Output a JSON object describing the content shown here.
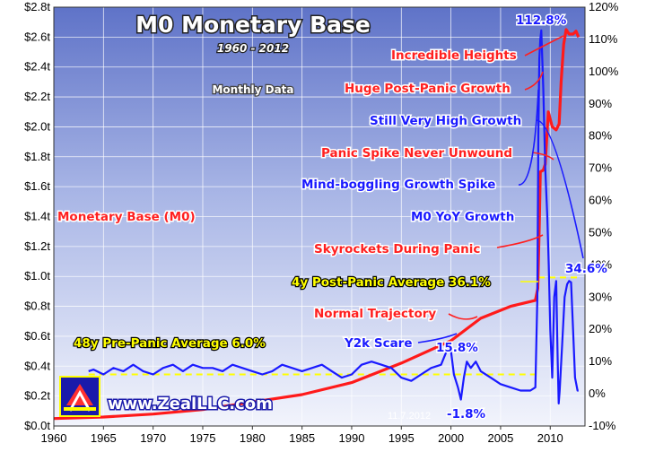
{
  "chart_data": {
    "type": "line",
    "title": "M0 Monetary Base",
    "subtitle": "1960 - 2012",
    "note": "Monthly Data",
    "watermark": "www.ZealLLC.com",
    "date_stamp": "11.7.2012",
    "x_ticks": [
      "1960",
      "1965",
      "1970",
      "1975",
      "1980",
      "1985",
      "1990",
      "1995",
      "2000",
      "2005",
      "2010"
    ],
    "xlim": [
      1960,
      2013.5
    ],
    "y_left": {
      "ticks": [
        "$0.0t",
        "$0.2t",
        "$0.4t",
        "$0.6t",
        "$0.8t",
        "$1.0t",
        "$1.2t",
        "$1.4t",
        "$1.6t",
        "$1.8t",
        "$2.0t",
        "$2.2t",
        "$2.4t",
        "$2.6t",
        "$2.8t"
      ],
      "lim": [
        0,
        2.8
      ]
    },
    "y_right": {
      "ticks": [
        "-10%",
        "0%",
        "10%",
        "20%",
        "30%",
        "40%",
        "50%",
        "60%",
        "70%",
        "80%",
        "90%",
        "100%",
        "110%",
        "120%"
      ],
      "lim": [
        -10,
        120
      ]
    },
    "grid": true,
    "series": [
      {
        "name": "Monetary Base (M0)",
        "axis": "left",
        "color": "#ff1a1a",
        "points": [
          [
            1960,
            0.05
          ],
          [
            1965,
            0.06
          ],
          [
            1970,
            0.08
          ],
          [
            1975,
            0.11
          ],
          [
            1980,
            0.16
          ],
          [
            1985,
            0.21
          ],
          [
            1990,
            0.29
          ],
          [
            1995,
            0.42
          ],
          [
            2000,
            0.57
          ],
          [
            2003,
            0.72
          ],
          [
            2006,
            0.8
          ],
          [
            2008.5,
            0.84
          ],
          [
            2008.75,
            0.92
          ],
          [
            2008.9,
            1.35
          ],
          [
            2009.0,
            1.7
          ],
          [
            2009.3,
            1.71
          ],
          [
            2009.5,
            1.75
          ],
          [
            2009.8,
            2.1
          ],
          [
            2010.2,
            2.0
          ],
          [
            2010.6,
            1.98
          ],
          [
            2010.9,
            2.02
          ],
          [
            2011.1,
            2.3
          ],
          [
            2011.35,
            2.55
          ],
          [
            2011.6,
            2.65
          ],
          [
            2011.9,
            2.62
          ],
          [
            2012.3,
            2.62
          ],
          [
            2012.6,
            2.64
          ],
          [
            2012.85,
            2.6
          ]
        ]
      },
      {
        "name": "M0 YoY Growth",
        "axis": "right",
        "color": "#1a1aff",
        "points": [
          [
            1963.5,
            7
          ],
          [
            1964,
            7.5
          ],
          [
            1965,
            6
          ],
          [
            1966,
            8
          ],
          [
            1967,
            7
          ],
          [
            1968,
            9
          ],
          [
            1969,
            7
          ],
          [
            1970,
            6
          ],
          [
            1971,
            8
          ],
          [
            1972,
            9
          ],
          [
            1973,
            7
          ],
          [
            1974,
            9
          ],
          [
            1975,
            8
          ],
          [
            1976,
            8
          ],
          [
            1977,
            7
          ],
          [
            1978,
            9
          ],
          [
            1979,
            8
          ],
          [
            1980,
            7
          ],
          [
            1981,
            6
          ],
          [
            1982,
            7
          ],
          [
            1983,
            9
          ],
          [
            1984,
            8
          ],
          [
            1985,
            7
          ],
          [
            1986,
            8
          ],
          [
            1987,
            9
          ],
          [
            1988,
            7
          ],
          [
            1989,
            5
          ],
          [
            1990,
            6
          ],
          [
            1991,
            9
          ],
          [
            1992,
            10
          ],
          [
            1993,
            9
          ],
          [
            1994,
            8
          ],
          [
            1995,
            5
          ],
          [
            1996,
            4
          ],
          [
            1997,
            6
          ],
          [
            1998,
            8
          ],
          [
            1999,
            9
          ],
          [
            1999.9,
            15.8
          ],
          [
            2000.3,
            6
          ],
          [
            2000.7,
            2
          ],
          [
            2001,
            -1.8
          ],
          [
            2001.3,
            5
          ],
          [
            2001.6,
            10
          ],
          [
            2002,
            8
          ],
          [
            2002.5,
            10
          ],
          [
            2003,
            7
          ],
          [
            2004,
            5
          ],
          [
            2005,
            3
          ],
          [
            2006,
            2
          ],
          [
            2007,
            1
          ],
          [
            2008,
            1
          ],
          [
            2008.5,
            2
          ],
          [
            2008.7,
            30
          ],
          [
            2008.8,
            80
          ],
          [
            2008.9,
            104
          ],
          [
            2009.0,
            110
          ],
          [
            2009.1,
            112.8
          ],
          [
            2009.3,
            95
          ],
          [
            2009.5,
            70
          ],
          [
            2009.7,
            55
          ],
          [
            2009.85,
            40
          ],
          [
            2010,
            20
          ],
          [
            2010.2,
            5
          ],
          [
            2010.4,
            30
          ],
          [
            2010.6,
            35
          ],
          [
            2010.75,
            10
          ],
          [
            2010.85,
            -3
          ],
          [
            2010.95,
            1
          ],
          [
            2011.2,
            15
          ],
          [
            2011.45,
            30
          ],
          [
            2011.7,
            34
          ],
          [
            2011.9,
            35
          ],
          [
            2012.1,
            34.6
          ],
          [
            2012.3,
            20
          ],
          [
            2012.5,
            5
          ],
          [
            2012.75,
            1
          ],
          [
            2012.85,
            1
          ]
        ]
      }
    ],
    "annotations": [
      {
        "text": "48y Pre-Panic Average 6.0%",
        "color": "#ffff00",
        "value": 6.0,
        "axis": "right",
        "x": [
          1963.5,
          2008.5
        ]
      },
      {
        "text": "4y Post-Panic Average 36.1%",
        "color": "#ffff00",
        "value": 36.1,
        "axis": "right",
        "x": [
          2008.8,
          2012.85
        ]
      },
      {
        "text": "Monetary Base (M0)",
        "color": "#ff2020"
      },
      {
        "text": "M0 YoY Growth",
        "color": "#1a1aff"
      },
      {
        "text": "Incredible Heights",
        "color": "#ff2020"
      },
      {
        "text": "Huge Post-Panic Growth",
        "color": "#ff2020"
      },
      {
        "text": "Still Very High Growth",
        "color": "#1a1aff"
      },
      {
        "text": "Panic Spike Never Unwound",
        "color": "#ff2020"
      },
      {
        "text": "Mind-boggling Growth Spike",
        "color": "#1a1aff"
      },
      {
        "text": "Skyrockets During Panic",
        "color": "#ff2020"
      },
      {
        "text": "Normal Trajectory",
        "color": "#ff2020"
      },
      {
        "text": "Y2k Scare",
        "color": "#1a1aff"
      },
      {
        "text": "15.8%",
        "color": "#1a1aff"
      },
      {
        "text": "-1.8%",
        "color": "#1a1aff"
      },
      {
        "text": "112.8%",
        "color": "#1a1aff"
      },
      {
        "text": "34.6%",
        "color": "#1a1aff"
      }
    ]
  }
}
